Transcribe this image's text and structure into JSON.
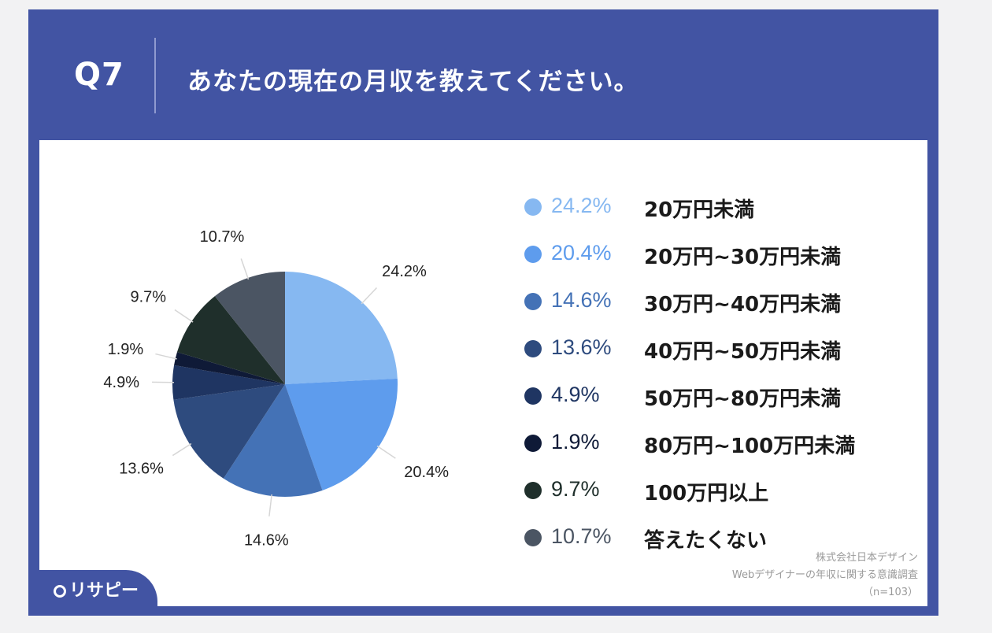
{
  "header": {
    "question_number": "Q7",
    "question_text": "あなたの現在の月収を教えてください。"
  },
  "chart_data": {
    "type": "pie",
    "title": "",
    "categories": [
      "20万円未満",
      "20万円~30万円未満",
      "30万円~40万円未満",
      "40万円~50万円未満",
      "50万円~80万円未満",
      "80万円~100万円未満",
      "100万円以上",
      "答えたくない"
    ],
    "values": [
      24.2,
      20.4,
      14.6,
      13.6,
      4.9,
      1.9,
      9.7,
      10.7
    ],
    "value_labels": [
      "24.2%",
      "20.4%",
      "14.6%",
      "13.6%",
      "4.9%",
      "1.9%",
      "9.7%",
      "10.7%"
    ],
    "colors": [
      "#86b8f1",
      "#5e9ced",
      "#4472b6",
      "#2e4b7e",
      "#1f3562",
      "#0f1a37",
      "#1f2f2b",
      "#4b5563"
    ],
    "legend_position": "right",
    "start": "12 o'clock, clockwise"
  },
  "legend_pct_colors": [
    "#86b8f1",
    "#5e9ced",
    "#4472b6",
    "#2e4b7e",
    "#1f3562",
    "#0f1a37",
    "#1f2f2b",
    "#4b5563"
  ],
  "source": {
    "line1": "株式会社日本デザイン",
    "line2": "Webデザイナーの年収に関する意識調査",
    "line3": "（n=103）"
  },
  "logo": {
    "text": "リサピー",
    "icon": "pin-icon"
  }
}
